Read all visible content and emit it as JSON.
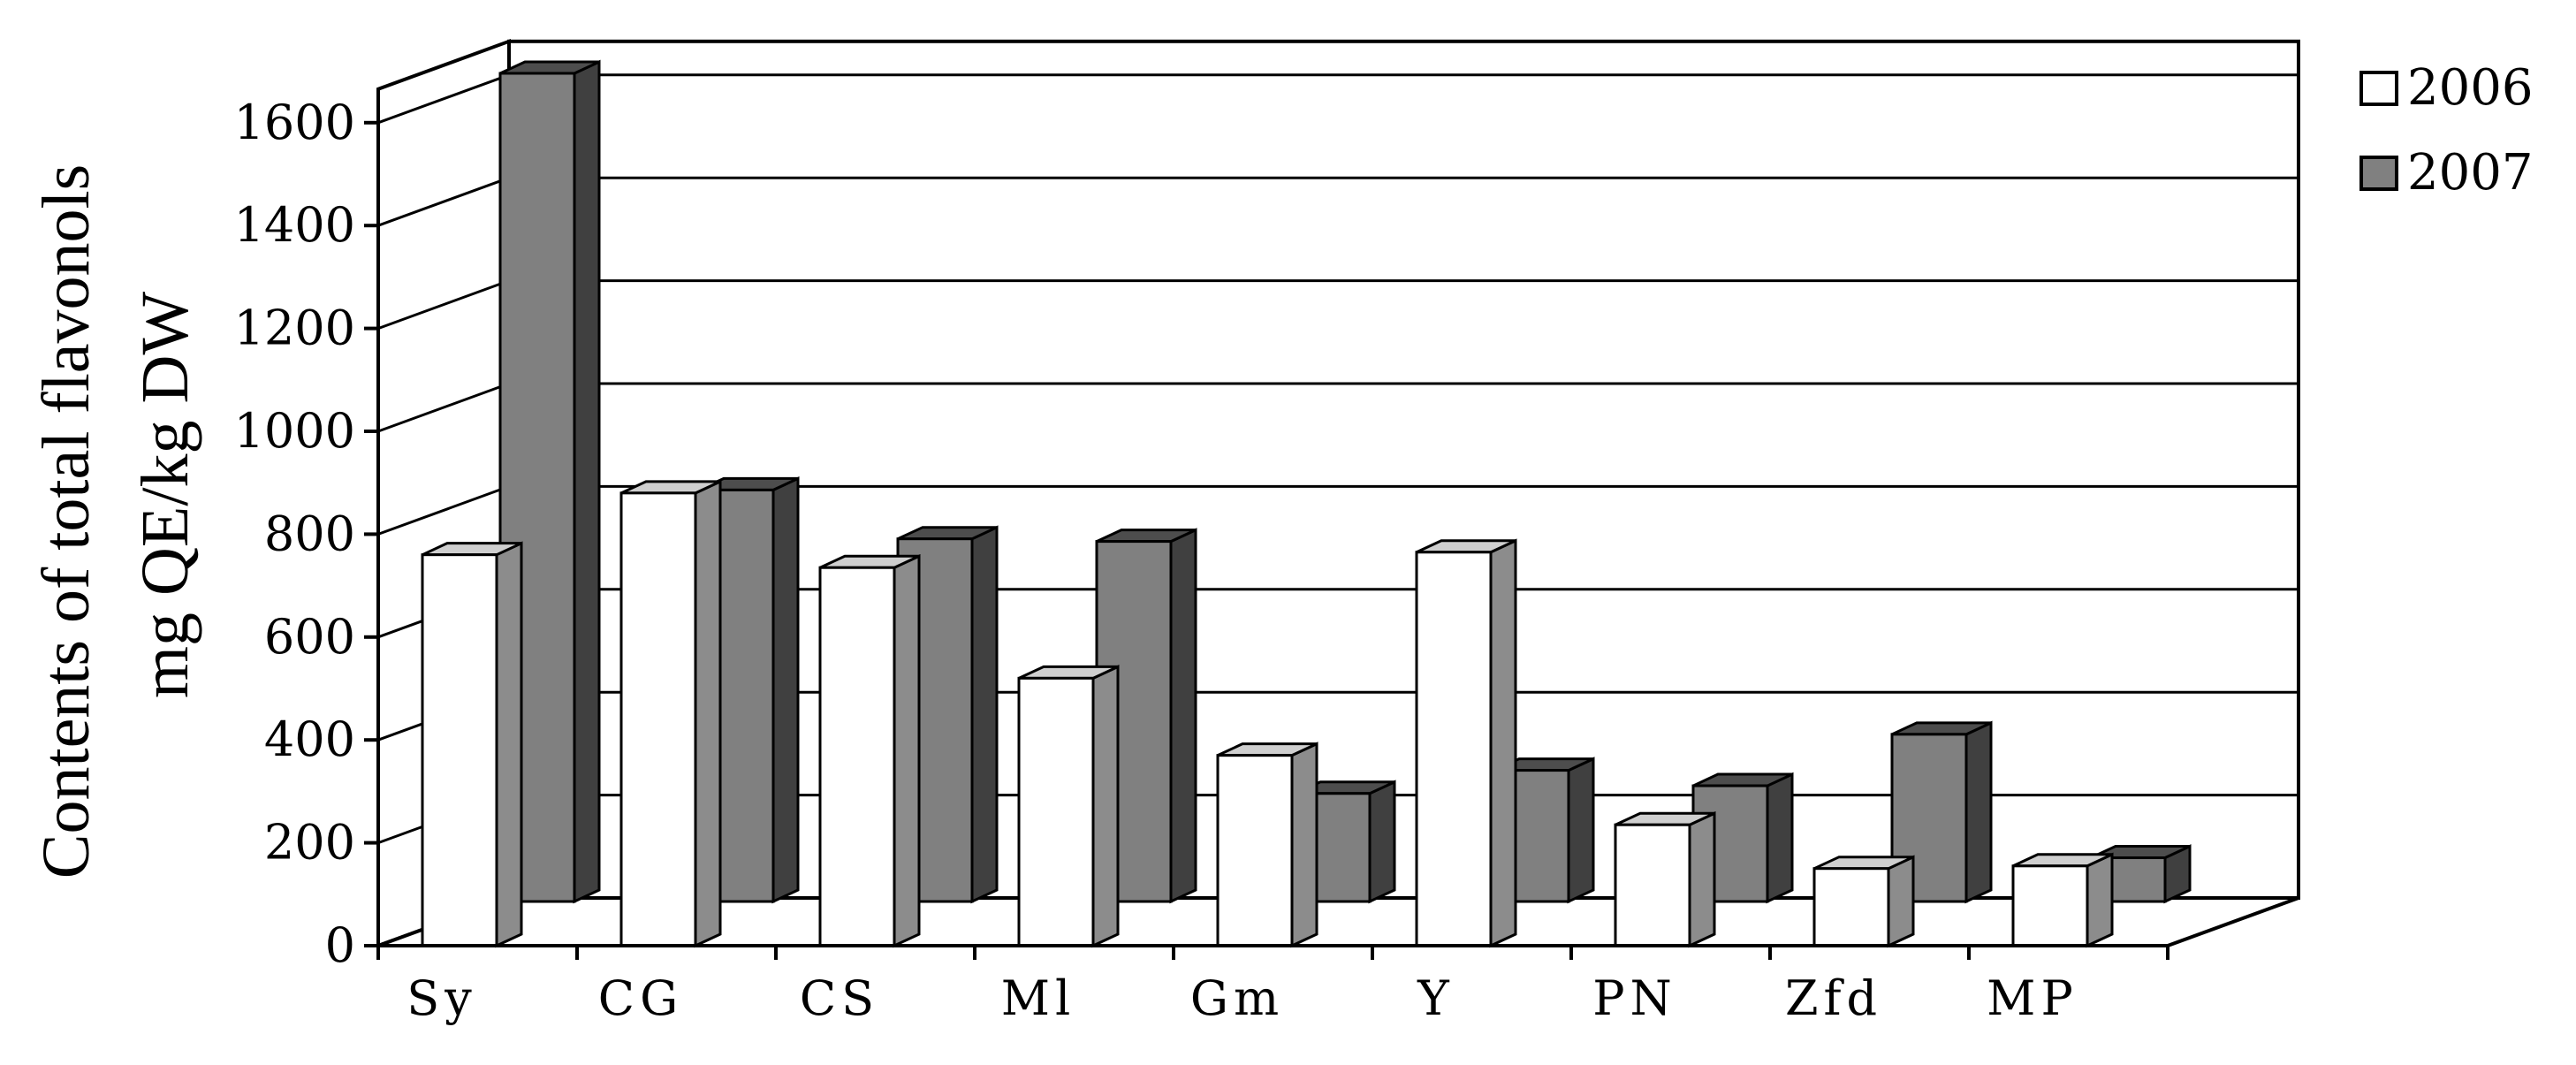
{
  "chart_data": {
    "type": "bar",
    "ylabel": [
      "Contents of total flavonols",
      "mg QE/kg DW"
    ],
    "xlabel": "",
    "title": "",
    "ylim": [
      0,
      1600
    ],
    "yticks": [
      0,
      200,
      400,
      600,
      800,
      1000,
      1200,
      1400,
      1600
    ],
    "categories": [
      "Sy",
      "CG",
      "CS",
      "Ml",
      "Gm",
      "Y",
      "PN",
      "Zfd",
      "MP"
    ],
    "series": [
      {
        "name": "2006",
        "values": [
          760,
          880,
          735,
          520,
          370,
          765,
          235,
          150,
          155
        ]
      },
      {
        "name": "2007",
        "values": [
          1610,
          800,
          705,
          700,
          210,
          255,
          225,
          325,
          85
        ]
      }
    ],
    "colors": {
      "2006": "#ffffff",
      "2007": "#808080"
    },
    "grid": true,
    "legend": "right"
  }
}
